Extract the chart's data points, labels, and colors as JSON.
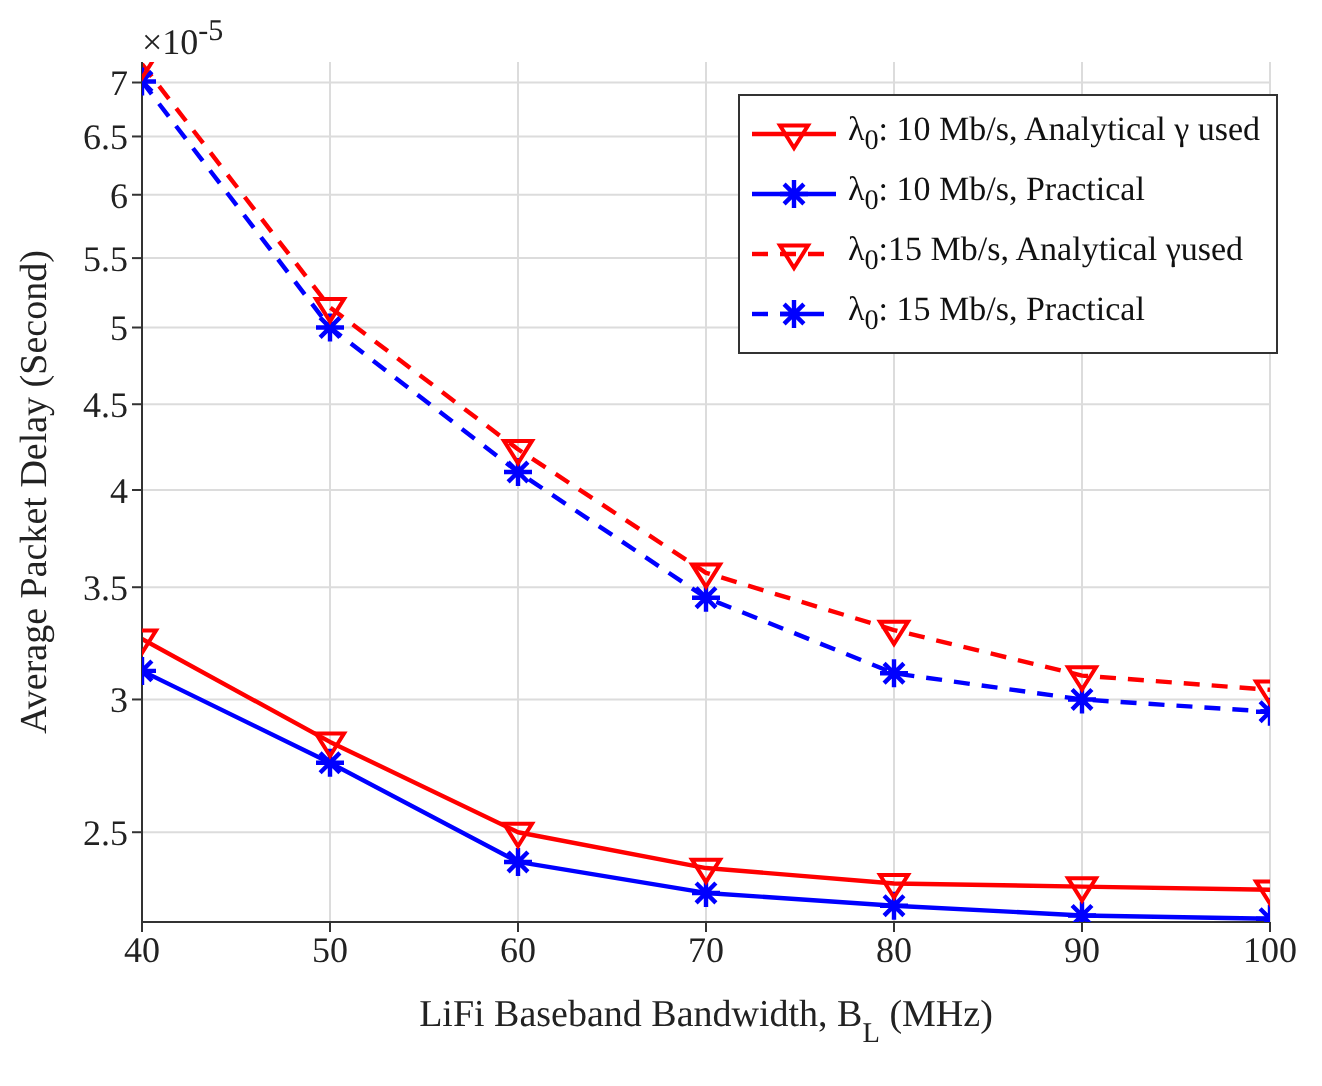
{
  "chart_data": {
    "type": "line",
    "xlabel": "LiFi Baseband Bandwidth, B$_{L}$ (MHz)",
    "ylabel": "Average Packet Delay (Second)",
    "annotations": [
      "×10$^{-5}$"
    ],
    "x": [
      40,
      50,
      60,
      70,
      80,
      90,
      100
    ],
    "series": [
      {
        "name": "λ$_{0}$: 10 Mb/s, Analytical γ used",
        "color": "#ff0000",
        "marker": "triangle",
        "line_style": "solid",
        "values": [
          3.26,
          2.83,
          2.5,
          2.38,
          2.33,
          2.32,
          2.31
        ]
      },
      {
        "name": "λ$_{0}$: 10 Mb/s, Practical",
        "color": "#0000ff",
        "marker": "cross",
        "line_style": "solid",
        "values": [
          3.12,
          2.75,
          2.4,
          2.3,
          2.26,
          2.23,
          2.22
        ]
      },
      {
        "name": "λ$_{0}$:15 Mb/s, Analytical γused",
        "color": "#ff0000",
        "marker": "triangle",
        "line_style": "dashed",
        "values": [
          7.18,
          5.14,
          4.23,
          3.57,
          3.3,
          3.1,
          3.04
        ]
      },
      {
        "name": "λ$_{0}$: 15 Mb/s, Practical",
        "color": "#0000ff",
        "marker": "cross",
        "line_style": "dashed",
        "values": [
          7.01,
          5.0,
          4.1,
          3.45,
          3.11,
          3.0,
          2.95
        ]
      }
    ],
    "xlim": [
      40,
      100
    ],
    "xticks": [
      40,
      50,
      60,
      70,
      80,
      90,
      100
    ],
    "ylim": [
      2.21,
      7.2
    ],
    "yticks": [
      2.5,
      3,
      3.5,
      4,
      4.5,
      5,
      5.5,
      6,
      6.5,
      7
    ],
    "log": "y",
    "grid": true,
    "legend": "top right"
  }
}
